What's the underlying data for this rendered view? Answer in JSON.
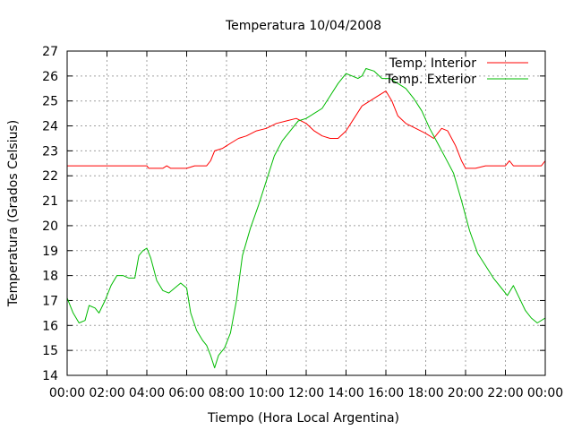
{
  "chart_data": {
    "type": "line",
    "title": "Temperatura 10/04/2008",
    "xlabel": "Tiempo (Hora Local Argentina)",
    "ylabel": "Temperatura (Grados Celsius)",
    "xlim": [
      0,
      24
    ],
    "ylim": [
      14,
      27
    ],
    "x_ticks": [
      "00:00",
      "02:00",
      "04:00",
      "06:00",
      "08:00",
      "10:00",
      "12:00",
      "14:00",
      "16:00",
      "18:00",
      "20:00",
      "22:00",
      "00:00"
    ],
    "y_ticks": [
      "14",
      "15",
      "16",
      "17",
      "18",
      "19",
      "20",
      "21",
      "22",
      "23",
      "24",
      "25",
      "26",
      "27"
    ],
    "grid": true,
    "legend": "top-right",
    "series": [
      {
        "name": "Temp. Interior",
        "color": "#ff0000",
        "points": [
          [
            0,
            22.4
          ],
          [
            1,
            22.4
          ],
          [
            2,
            22.4
          ],
          [
            3,
            22.4
          ],
          [
            4,
            22.4
          ],
          [
            4.1,
            22.3
          ],
          [
            4.8,
            22.3
          ],
          [
            5,
            22.4
          ],
          [
            5.2,
            22.3
          ],
          [
            6,
            22.3
          ],
          [
            6.4,
            22.4
          ],
          [
            7,
            22.4
          ],
          [
            7.2,
            22.6
          ],
          [
            7.4,
            23.0
          ],
          [
            7.8,
            23.1
          ],
          [
            8.2,
            23.3
          ],
          [
            8.6,
            23.5
          ],
          [
            9,
            23.6
          ],
          [
            9.5,
            23.8
          ],
          [
            10,
            23.9
          ],
          [
            10.5,
            24.1
          ],
          [
            11,
            24.2
          ],
          [
            11.5,
            24.3
          ],
          [
            12,
            24.1
          ],
          [
            12.4,
            23.8
          ],
          [
            12.8,
            23.6
          ],
          [
            13.2,
            23.5
          ],
          [
            13.6,
            23.5
          ],
          [
            14,
            23.8
          ],
          [
            14.4,
            24.3
          ],
          [
            14.8,
            24.8
          ],
          [
            15.2,
            25.0
          ],
          [
            15.6,
            25.2
          ],
          [
            16,
            25.4
          ],
          [
            16.3,
            25.0
          ],
          [
            16.6,
            24.4
          ],
          [
            17,
            24.1
          ],
          [
            17.5,
            23.9
          ],
          [
            18,
            23.7
          ],
          [
            18.4,
            23.5
          ],
          [
            18.8,
            23.9
          ],
          [
            19.1,
            23.8
          ],
          [
            19.5,
            23.2
          ],
          [
            19.8,
            22.6
          ],
          [
            20,
            22.3
          ],
          [
            20.5,
            22.3
          ],
          [
            21,
            22.4
          ],
          [
            21.5,
            22.4
          ],
          [
            22,
            22.4
          ],
          [
            22.2,
            22.6
          ],
          [
            22.4,
            22.4
          ],
          [
            23,
            22.4
          ],
          [
            23.8,
            22.4
          ],
          [
            24,
            22.6
          ]
        ]
      },
      {
        "name": "Temp. Exterior",
        "color": "#00bb00",
        "points": [
          [
            0,
            17.1
          ],
          [
            0.3,
            16.5
          ],
          [
            0.6,
            16.1
          ],
          [
            0.9,
            16.2
          ],
          [
            1.1,
            16.8
          ],
          [
            1.4,
            16.7
          ],
          [
            1.6,
            16.5
          ],
          [
            1.9,
            17.0
          ],
          [
            2.2,
            17.6
          ],
          [
            2.5,
            18.0
          ],
          [
            2.8,
            18.0
          ],
          [
            3.1,
            17.9
          ],
          [
            3.4,
            17.9
          ],
          [
            3.6,
            18.8
          ],
          [
            3.8,
            19.0
          ],
          [
            4.0,
            19.1
          ],
          [
            4.2,
            18.7
          ],
          [
            4.5,
            17.8
          ],
          [
            4.8,
            17.4
          ],
          [
            5.1,
            17.3
          ],
          [
            5.4,
            17.5
          ],
          [
            5.7,
            17.7
          ],
          [
            6.0,
            17.5
          ],
          [
            6.2,
            16.5
          ],
          [
            6.5,
            15.8
          ],
          [
            6.8,
            15.4
          ],
          [
            7.0,
            15.2
          ],
          [
            7.2,
            14.8
          ],
          [
            7.4,
            14.3
          ],
          [
            7.6,
            14.8
          ],
          [
            7.9,
            15.1
          ],
          [
            8.2,
            15.7
          ],
          [
            8.5,
            17.0
          ],
          [
            8.8,
            18.8
          ],
          [
            9.2,
            19.9
          ],
          [
            9.6,
            20.8
          ],
          [
            10.0,
            21.8
          ],
          [
            10.4,
            22.8
          ],
          [
            10.8,
            23.4
          ],
          [
            11.2,
            23.8
          ],
          [
            11.6,
            24.2
          ],
          [
            12.0,
            24.3
          ],
          [
            12.4,
            24.5
          ],
          [
            12.8,
            24.7
          ],
          [
            13.2,
            25.2
          ],
          [
            13.6,
            25.7
          ],
          [
            14.0,
            26.1
          ],
          [
            14.3,
            26.0
          ],
          [
            14.6,
            25.9
          ],
          [
            14.8,
            26.0
          ],
          [
            15.0,
            26.3
          ],
          [
            15.4,
            26.2
          ],
          [
            15.8,
            25.9
          ],
          [
            16.2,
            25.9
          ],
          [
            16.6,
            25.7
          ],
          [
            17.0,
            25.5
          ],
          [
            17.4,
            25.1
          ],
          [
            17.8,
            24.6
          ],
          [
            18.2,
            23.9
          ],
          [
            18.6,
            23.3
          ],
          [
            19.0,
            22.7
          ],
          [
            19.4,
            22.1
          ],
          [
            19.8,
            21.0
          ],
          [
            20.2,
            19.8
          ],
          [
            20.6,
            18.9
          ],
          [
            21.0,
            18.4
          ],
          [
            21.4,
            17.9
          ],
          [
            21.8,
            17.5
          ],
          [
            22.1,
            17.2
          ],
          [
            22.4,
            17.6
          ],
          [
            22.7,
            17.1
          ],
          [
            23.0,
            16.6
          ],
          [
            23.3,
            16.3
          ],
          [
            23.6,
            16.1
          ],
          [
            24.0,
            16.3
          ]
        ]
      }
    ]
  }
}
